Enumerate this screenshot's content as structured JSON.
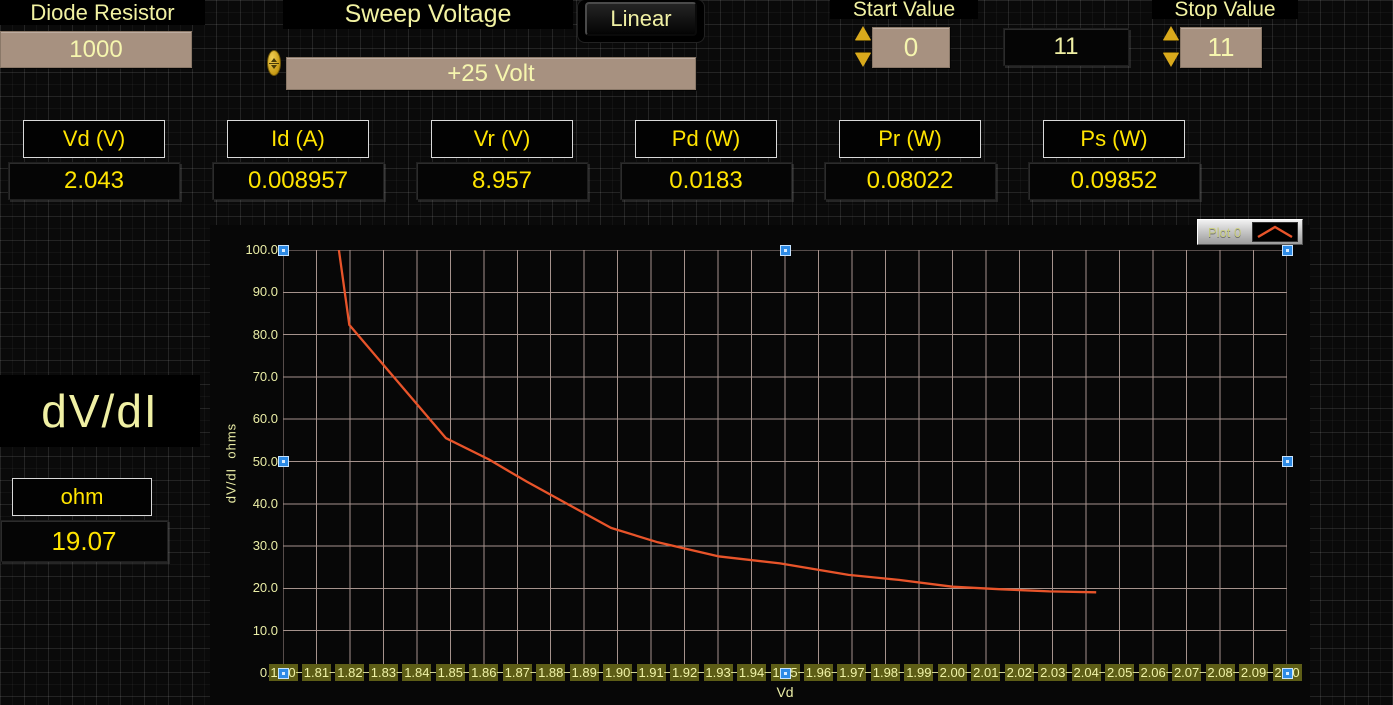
{
  "top_controls": {
    "diode_resistor": {
      "label": "Diode Resistor",
      "value": "1000"
    },
    "sweep_voltage": {
      "label": "Sweep Voltage",
      "value": "+25 Volt",
      "mode_button_label": "Linear"
    },
    "start_value": {
      "label": "Start Value",
      "value": "0"
    },
    "steps_indicator": {
      "value": "11"
    },
    "stop_value": {
      "label": "Stop Value",
      "value": "11"
    }
  },
  "indicators": [
    {
      "label": "Vd (V)",
      "value": "2.043"
    },
    {
      "label": "Id (A)",
      "value": "0.008957"
    },
    {
      "label": "Vr (V)",
      "value": "8.957"
    },
    {
      "label": "Pd (W)",
      "value": "0.0183"
    },
    {
      "label": "Pr (W)",
      "value": "0.08022"
    },
    {
      "label": "Ps (W)",
      "value": "0.09852"
    }
  ],
  "dvdi_section": {
    "title": "dV/dI",
    "unit_label": "ohm",
    "value": "19.07"
  },
  "chart_data": {
    "type": "line",
    "title": "",
    "xlabel": "Vd",
    "ylabel": "dV/dI  ohms",
    "xlim": [
      1.8,
      2.1
    ],
    "ylim": [
      0,
      100
    ],
    "x_tick_step": 0.01,
    "y_tick_step": 10,
    "grid": true,
    "legend_position": "top-right",
    "x_ticks": [
      "1.80",
      "1.81",
      "1.82",
      "1.83",
      "1.84",
      "1.85",
      "1.86",
      "1.87",
      "1.88",
      "1.89",
      "1.90",
      "1.91",
      "1.92",
      "1.93",
      "1.94",
      "1.95",
      "1.96",
      "1.97",
      "1.98",
      "1.99",
      "2.00",
      "2.01",
      "2.02",
      "2.03",
      "2.04",
      "2.05",
      "2.06",
      "2.07",
      "2.08",
      "2.09",
      "2.10"
    ],
    "y_ticks": [
      "100.0",
      "90.0",
      "80.0",
      "70.0",
      "60.0",
      "50.0",
      "40.0",
      "30.0",
      "20.0",
      "10.0",
      "0.0"
    ],
    "series": [
      {
        "name": "Plot 0",
        "color": "#e8542a",
        "points": [
          [
            1.8167,
            100
          ],
          [
            1.8198,
            82.3
          ],
          [
            1.8487,
            55.5
          ],
          [
            1.8615,
            50.5
          ],
          [
            1.8729,
            45.2
          ],
          [
            1.898,
            34.3
          ],
          [
            1.912,
            30.9
          ],
          [
            1.93,
            27.6
          ],
          [
            1.9485,
            25.9
          ],
          [
            1.969,
            23.2
          ],
          [
            1.984,
            22.0
          ],
          [
            2.0,
            20.4
          ],
          [
            2.014,
            19.8
          ],
          [
            2.029,
            19.3
          ],
          [
            2.043,
            19.07
          ]
        ]
      }
    ]
  },
  "colors": {
    "pale_yellow_text": "#f0f0a4",
    "bright_yellow_text": "#ffe400",
    "tan_control": "#a79180",
    "olive_tick_bg": "#5d5d16",
    "curve": "#e8542a",
    "plot_grid": "#a5928c",
    "handle_blue": "#2e8be6"
  }
}
